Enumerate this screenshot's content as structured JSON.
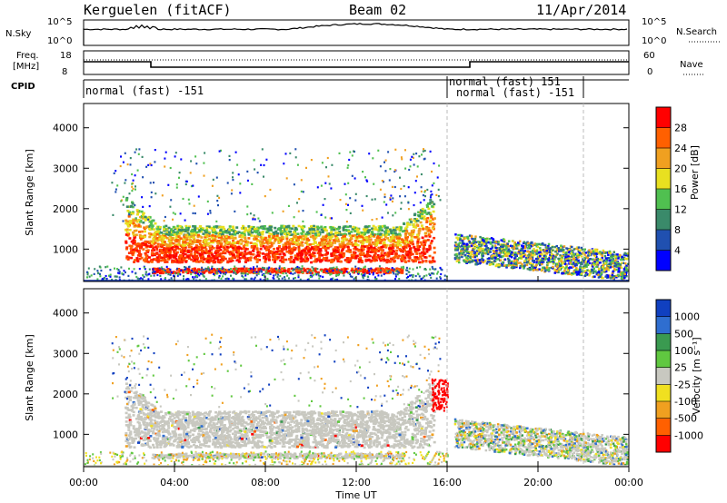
{
  "header": {
    "station": "Kerguelen (fitACF)",
    "beam": "Beam 02",
    "date": "11/Apr/2014"
  },
  "top_panels": {
    "nsky_label": "N.Sky",
    "nsky_ticks": [
      "10^5",
      "10^0"
    ],
    "nsearch_label": "N.Search",
    "nsearch_ticks": [
      "10^5",
      "10^0"
    ],
    "freq_label": "Freq.",
    "freq_unit": "[MHz]",
    "freq_ticks": [
      "18",
      "8"
    ],
    "nave_label": "Nave",
    "nave_ticks": [
      "60",
      "0"
    ],
    "cpid_label": "CPID",
    "cpid_segments": [
      {
        "text": "normal (fast) -151"
      },
      {
        "text": "normal (fast) 151"
      },
      {
        "text": "normal (fast) -151"
      }
    ]
  },
  "chart_data": [
    {
      "type": "heatmap",
      "name": "power",
      "ylabel": "Slant Range [km]",
      "ylim": [
        200,
        4600
      ],
      "yticks": [
        "1000",
        "2000",
        "3000",
        "4000"
      ],
      "xlim": [
        0,
        24
      ],
      "colorbar_label": "Power [dB]",
      "colorbar_ticks": [
        "4",
        "8",
        "12",
        "16",
        "20",
        "24",
        "28"
      ],
      "colors": [
        "#0000ff",
        "#2050b0",
        "#3a8a6a",
        "#50c050",
        "#e8e020",
        "#f0a020",
        "#ff6000",
        "#ff0000"
      ]
    },
    {
      "type": "heatmap",
      "name": "velocity",
      "ylabel": "Slant Range [km]",
      "ylim": [
        200,
        4600
      ],
      "yticks": [
        "1000",
        "2000",
        "3000",
        "4000"
      ],
      "xlim": [
        0,
        24
      ],
      "xlabel": "Time UT",
      "xticks": [
        "00:00",
        "04:00",
        "08:00",
        "12:00",
        "16:00",
        "20:00",
        "00:00"
      ],
      "colorbar_label": "Velocity [m s⁻¹]",
      "colorbar_ticks": [
        "1000",
        "500",
        "100",
        "25",
        "-25",
        "-100",
        "-500",
        "-1000"
      ],
      "colors": [
        "#1040c0",
        "#2f6ed0",
        "#3a9a50",
        "#60c840",
        "#c8c8c0",
        "#f0e020",
        "#f0a020",
        "#ff6000",
        "#ff0000"
      ]
    }
  ]
}
